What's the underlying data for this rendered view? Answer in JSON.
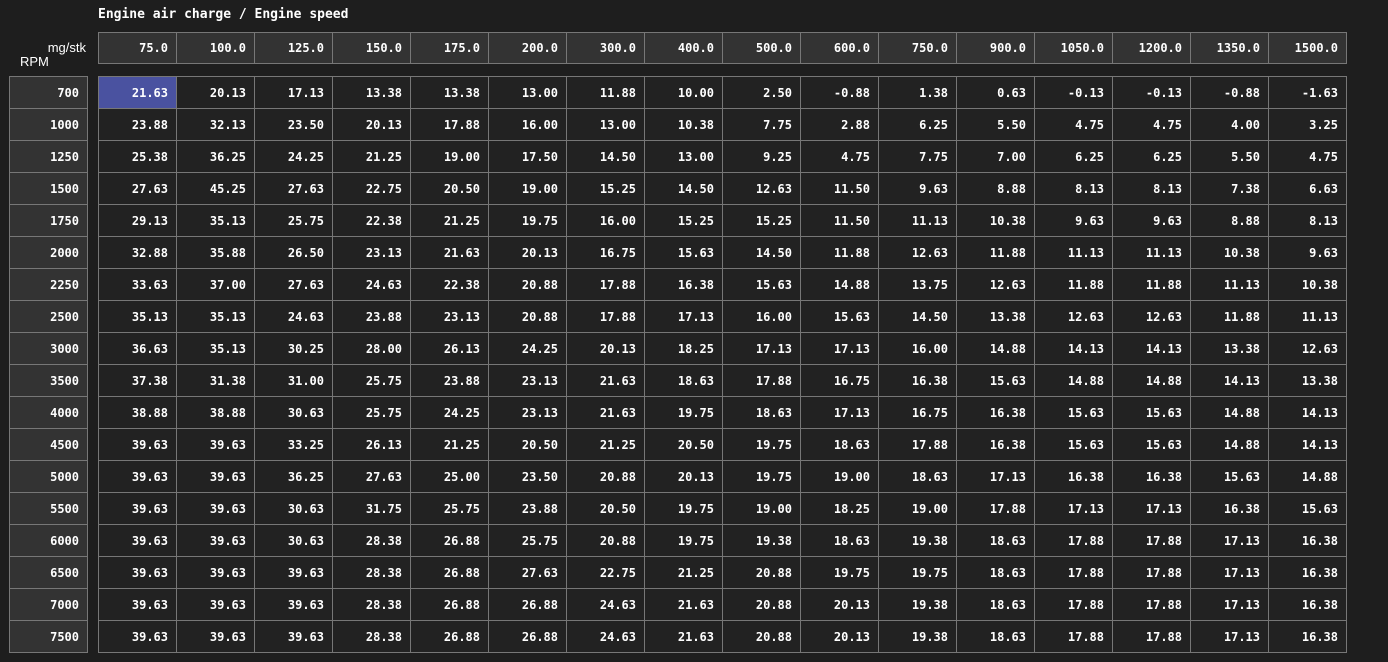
{
  "title": "Engine air charge / Engine speed",
  "x_unit": "mg/stk",
  "y_unit": "RPM",
  "selected_cell": {
    "row": 0,
    "col": 0
  },
  "colors": {
    "background": "#1e1e1e",
    "header": "#333333",
    "cell": "#222222",
    "selected": "#4a52a0"
  },
  "columns": [
    "75.0",
    "100.0",
    "125.0",
    "150.0",
    "175.0",
    "200.0",
    "300.0",
    "400.0",
    "500.0",
    "600.0",
    "750.0",
    "900.0",
    "1050.0",
    "1200.0",
    "1350.0",
    "1500.0"
  ],
  "rows": [
    "700",
    "1000",
    "1250",
    "1500",
    "1750",
    "2000",
    "2250",
    "2500",
    "3000",
    "3500",
    "4000",
    "4500",
    "5000",
    "5500",
    "6000",
    "6500",
    "7000",
    "7500"
  ],
  "values": [
    [
      "21.63",
      "20.13",
      "17.13",
      "13.38",
      "13.38",
      "13.00",
      "11.88",
      "10.00",
      "2.50",
      "-0.88",
      "1.38",
      "0.63",
      "-0.13",
      "-0.13",
      "-0.88",
      "-1.63"
    ],
    [
      "23.88",
      "32.13",
      "23.50",
      "20.13",
      "17.88",
      "16.00",
      "13.00",
      "10.38",
      "7.75",
      "2.88",
      "6.25",
      "5.50",
      "4.75",
      "4.75",
      "4.00",
      "3.25"
    ],
    [
      "25.38",
      "36.25",
      "24.25",
      "21.25",
      "19.00",
      "17.50",
      "14.50",
      "13.00",
      "9.25",
      "4.75",
      "7.75",
      "7.00",
      "6.25",
      "6.25",
      "5.50",
      "4.75"
    ],
    [
      "27.63",
      "45.25",
      "27.63",
      "22.75",
      "20.50",
      "19.00",
      "15.25",
      "14.50",
      "12.63",
      "11.50",
      "9.63",
      "8.88",
      "8.13",
      "8.13",
      "7.38",
      "6.63"
    ],
    [
      "29.13",
      "35.13",
      "25.75",
      "22.38",
      "21.25",
      "19.75",
      "16.00",
      "15.25",
      "15.25",
      "11.50",
      "11.13",
      "10.38",
      "9.63",
      "9.63",
      "8.88",
      "8.13"
    ],
    [
      "32.88",
      "35.88",
      "26.50",
      "23.13",
      "21.63",
      "20.13",
      "16.75",
      "15.63",
      "14.50",
      "11.88",
      "12.63",
      "11.88",
      "11.13",
      "11.13",
      "10.38",
      "9.63"
    ],
    [
      "33.63",
      "37.00",
      "27.63",
      "24.63",
      "22.38",
      "20.88",
      "17.88",
      "16.38",
      "15.63",
      "14.88",
      "13.75",
      "12.63",
      "11.88",
      "11.88",
      "11.13",
      "10.38"
    ],
    [
      "35.13",
      "35.13",
      "24.63",
      "23.88",
      "23.13",
      "20.88",
      "17.88",
      "17.13",
      "16.00",
      "15.63",
      "14.50",
      "13.38",
      "12.63",
      "12.63",
      "11.88",
      "11.13"
    ],
    [
      "36.63",
      "35.13",
      "30.25",
      "28.00",
      "26.13",
      "24.25",
      "20.13",
      "18.25",
      "17.13",
      "17.13",
      "16.00",
      "14.88",
      "14.13",
      "14.13",
      "13.38",
      "12.63"
    ],
    [
      "37.38",
      "31.38",
      "31.00",
      "25.75",
      "23.88",
      "23.13",
      "21.63",
      "18.63",
      "17.88",
      "16.75",
      "16.38",
      "15.63",
      "14.88",
      "14.88",
      "14.13",
      "13.38"
    ],
    [
      "38.88",
      "38.88",
      "30.63",
      "25.75",
      "24.25",
      "23.13",
      "21.63",
      "19.75",
      "18.63",
      "17.13",
      "16.75",
      "16.38",
      "15.63",
      "15.63",
      "14.88",
      "14.13"
    ],
    [
      "39.63",
      "39.63",
      "33.25",
      "26.13",
      "21.25",
      "20.50",
      "21.25",
      "20.50",
      "19.75",
      "18.63",
      "17.88",
      "16.38",
      "15.63",
      "15.63",
      "14.88",
      "14.13"
    ],
    [
      "39.63",
      "39.63",
      "36.25",
      "27.63",
      "25.00",
      "23.50",
      "20.88",
      "20.13",
      "19.75",
      "19.00",
      "18.63",
      "17.13",
      "16.38",
      "16.38",
      "15.63",
      "14.88"
    ],
    [
      "39.63",
      "39.63",
      "30.63",
      "31.75",
      "25.75",
      "23.88",
      "20.50",
      "19.75",
      "19.00",
      "18.25",
      "19.00",
      "17.88",
      "17.13",
      "17.13",
      "16.38",
      "15.63"
    ],
    [
      "39.63",
      "39.63",
      "30.63",
      "28.38",
      "26.88",
      "25.75",
      "20.88",
      "19.75",
      "19.38",
      "18.63",
      "19.38",
      "18.63",
      "17.88",
      "17.88",
      "17.13",
      "16.38"
    ],
    [
      "39.63",
      "39.63",
      "39.63",
      "28.38",
      "26.88",
      "27.63",
      "22.75",
      "21.25",
      "20.88",
      "19.75",
      "19.75",
      "18.63",
      "17.88",
      "17.88",
      "17.13",
      "16.38"
    ],
    [
      "39.63",
      "39.63",
      "39.63",
      "28.38",
      "26.88",
      "26.88",
      "24.63",
      "21.63",
      "20.88",
      "20.13",
      "19.38",
      "18.63",
      "17.88",
      "17.88",
      "17.13",
      "16.38"
    ],
    [
      "39.63",
      "39.63",
      "39.63",
      "28.38",
      "26.88",
      "26.88",
      "24.63",
      "21.63",
      "20.88",
      "20.13",
      "19.38",
      "18.63",
      "17.88",
      "17.88",
      "17.13",
      "16.38"
    ]
  ]
}
